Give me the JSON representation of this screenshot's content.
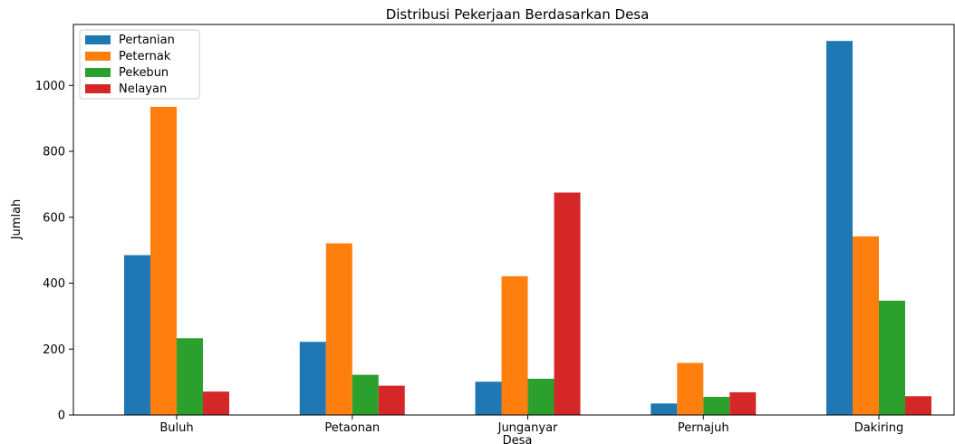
{
  "chart_data": {
    "type": "bar",
    "title": "Distribusi Pekerjaan Berdasarkan Desa",
    "xlabel": "Desa",
    "ylabel": "Jumlah",
    "categories": [
      "Buluh",
      "Petaonan",
      "Junganyar",
      "Pernajuh",
      "Dakiring"
    ],
    "series": [
      {
        "name": "Pertanian",
        "color": "#1f77b4",
        "values": [
          485,
          222,
          101,
          35,
          1135
        ]
      },
      {
        "name": "Peternak",
        "color": "#ff7f0e",
        "values": [
          935,
          521,
          421,
          158,
          542
        ]
      },
      {
        "name": "Pekebun",
        "color": "#2ca02c",
        "values": [
          233,
          122,
          110,
          55,
          347
        ]
      },
      {
        "name": "Nelayan",
        "color": "#d62728",
        "values": [
          71,
          89,
          675,
          69,
          57
        ]
      }
    ],
    "ylim": [
      0,
      1185
    ],
    "yticks": [
      0,
      200,
      400,
      600,
      800,
      1000
    ],
    "legend_position": "top-left",
    "grid": false
  }
}
